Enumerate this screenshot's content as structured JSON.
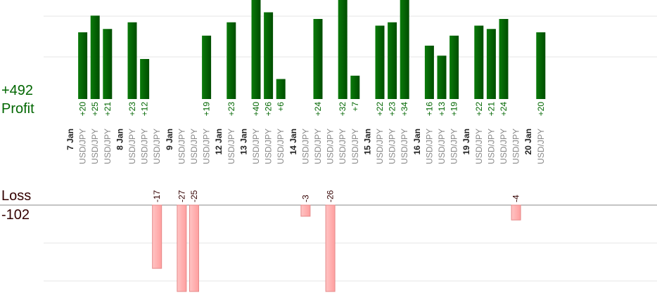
{
  "summary": {
    "profit_total": "+492",
    "profit_label": "Profit",
    "loss_label": "Loss",
    "loss_total": "-102"
  },
  "colors": {
    "profit_bar_dark": "#005500",
    "profit_bar_light": "#0a7a0a",
    "profit_text": "#006600",
    "loss_bar": "#ffb3b3",
    "loss_bar_edge": "#e58a8a",
    "loss_text": "#330000",
    "day_text": "#222222",
    "symbol_text": "#888888",
    "grid": "#e6e6e6",
    "baseline": "#888888"
  },
  "chart_data": {
    "type": "bar",
    "symbol": "USD/JPY",
    "days": [
      {
        "label": "7 Jan",
        "trades": [
          20,
          25,
          21
        ]
      },
      {
        "label": "8 Jan",
        "trades": [
          23,
          12,
          -17
        ]
      },
      {
        "label": "9 Jan",
        "trades": [
          -27,
          -25,
          19
        ]
      },
      {
        "label": "12 Jan",
        "trades": [
          23
        ]
      },
      {
        "label": "13 Jan",
        "trades": [
          40,
          26,
          6
        ]
      },
      {
        "label": "14 Jan",
        "trades": [
          -3,
          24,
          -26,
          32,
          7
        ]
      },
      {
        "label": "15 Jan",
        "trades": [
          22,
          23,
          34
        ]
      },
      {
        "label": "16 Jan",
        "trades": [
          16,
          13,
          19
        ]
      },
      {
        "label": "19 Jan",
        "trades": [
          22,
          21,
          24,
          -4
        ]
      },
      {
        "label": "20 Jan",
        "trades": [
          20
        ]
      }
    ]
  }
}
